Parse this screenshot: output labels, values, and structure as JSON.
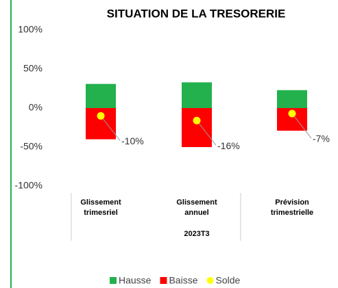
{
  "chart_data": {
    "type": "stacked_bar",
    "title": "SITUATION DE LA TRESORERIE",
    "categories": [
      [
        "Glissement",
        "trimesriel"
      ],
      [
        "Glissement",
        "annuel"
      ],
      [
        "Prévision",
        "trimestrielle"
      ]
    ],
    "group_label": "2023T3",
    "series": [
      {
        "name": "Hausse",
        "color": "#22b14c",
        "values": [
          31,
          33,
          23
        ]
      },
      {
        "name": "Baisse",
        "color": "#ff0000",
        "values": [
          -40,
          -50,
          -29
        ]
      },
      {
        "name": "Solde",
        "color": "#ffff00",
        "type": "scatter",
        "values": [
          -10,
          -16,
          -7
        ],
        "value_labels": [
          "-10%",
          "-16%",
          "-7%"
        ]
      }
    ],
    "ylim": [
      -100,
      100
    ],
    "yticks": [
      {
        "value": 100,
        "label": "100%"
      },
      {
        "value": 50,
        "label": "50%"
      },
      {
        "value": 0,
        "label": "0%"
      },
      {
        "value": -50,
        "label": "-50%"
      },
      {
        "value": -100,
        "label": "-100%"
      }
    ],
    "legend": "bottom"
  }
}
